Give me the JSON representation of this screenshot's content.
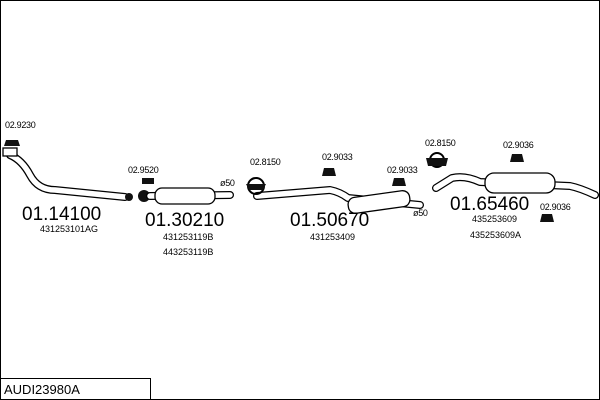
{
  "parts": [
    {
      "number": "01.14100",
      "codes": [
        "431253101AG"
      ]
    },
    {
      "number": "01.30210",
      "codes": [
        "431253119B",
        "443253119B"
      ]
    },
    {
      "number": "01.50670",
      "codes": [
        "431253409"
      ]
    },
    {
      "number": "01.65460",
      "codes": [
        "435253609",
        "435253609A"
      ]
    }
  ],
  "accessories": [
    "02.9230",
    "02.9520",
    "02.8150",
    "02.9033",
    "02.9033",
    "02.8150",
    "02.9036",
    "02.9036"
  ],
  "diameters": [
    "ø50",
    "ø50"
  ],
  "footer": {
    "code": "AUDI23980A"
  }
}
